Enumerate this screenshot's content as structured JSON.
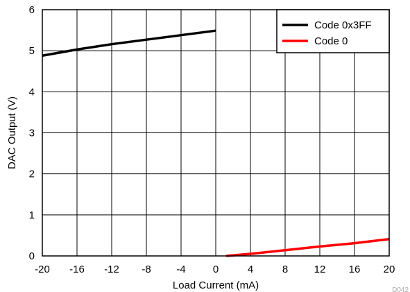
{
  "chart_data": {
    "type": "line",
    "title": "",
    "xlabel": "Load Current (mA)",
    "ylabel": "DAC Output (V)",
    "xlim": [
      -20,
      20
    ],
    "ylim": [
      0,
      6
    ],
    "xticks": [
      -20,
      -16,
      -12,
      -8,
      -4,
      0,
      4,
      8,
      12,
      16,
      20
    ],
    "yticks": [
      0,
      1,
      2,
      3,
      4,
      5,
      6
    ],
    "grid": true,
    "legend_position": "top-right",
    "series": [
      {
        "name": "Code 0x3FF",
        "color": "#000000",
        "x": [
          -20,
          -16,
          -12,
          -8,
          -4,
          0
        ],
        "y": [
          4.88,
          5.03,
          5.16,
          5.27,
          5.38,
          5.49
        ]
      },
      {
        "name": "Code 0",
        "color": "#ff0000",
        "x": [
          1.2,
          4,
          8,
          12,
          16,
          20
        ],
        "y": [
          0.0,
          0.05,
          0.14,
          0.23,
          0.31,
          0.41
        ]
      }
    ]
  },
  "figure_code": "D042"
}
